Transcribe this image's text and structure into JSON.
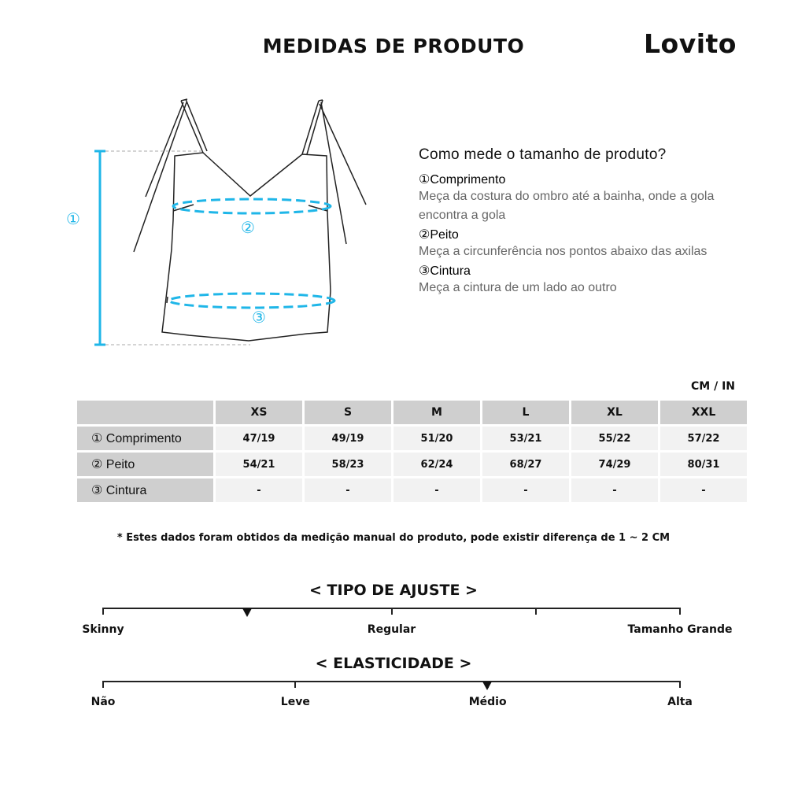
{
  "header": {
    "title": "MEDIDAS DE PRODUTO",
    "logo": "Lovito"
  },
  "diagram": {
    "markers": [
      "①",
      "②",
      "③"
    ],
    "accent": "#1fb6e8"
  },
  "guide": {
    "heading": "Como mede o tamanho de produto?",
    "items": [
      {
        "label": "①Comprimento",
        "desc": "Meça da costura do ombro até a bainha, onde a gola encontra a gola"
      },
      {
        "label": "②Peito",
        "desc": "Meça a circunferência nos pontos abaixo das axilas"
      },
      {
        "label": "③Cintura",
        "desc": "Meça a cintura de um lado ao outro"
      }
    ]
  },
  "table": {
    "unit": "CM / IN",
    "sizes": [
      "XS",
      "S",
      "M",
      "L",
      "XL",
      "XXL"
    ],
    "rows": [
      {
        "label": "① Comprimento",
        "values": [
          "47/19",
          "49/19",
          "51/20",
          "53/21",
          "55/22",
          "57/22"
        ]
      },
      {
        "label": "② Peito",
        "values": [
          "54/21",
          "58/23",
          "62/24",
          "68/27",
          "74/29",
          "80/31"
        ]
      },
      {
        "label": "③ Cintura",
        "values": [
          "-",
          "-",
          "-",
          "-",
          "-",
          "-"
        ]
      }
    ]
  },
  "note": "* Estes dados foram obtidos da medição manual do produto, pode existir diferença de 1 ~ 2 CM",
  "fit": {
    "title": "< TIPO DE AJUSTE >",
    "labels": [
      "Skinny",
      "Regular",
      "Tamanho Grande"
    ],
    "value": 0.25
  },
  "elasticity": {
    "title": "< ELASTICIDADE >",
    "labels": [
      "Não",
      "Leve",
      "Médio",
      "Alta"
    ],
    "value": 0.666
  }
}
